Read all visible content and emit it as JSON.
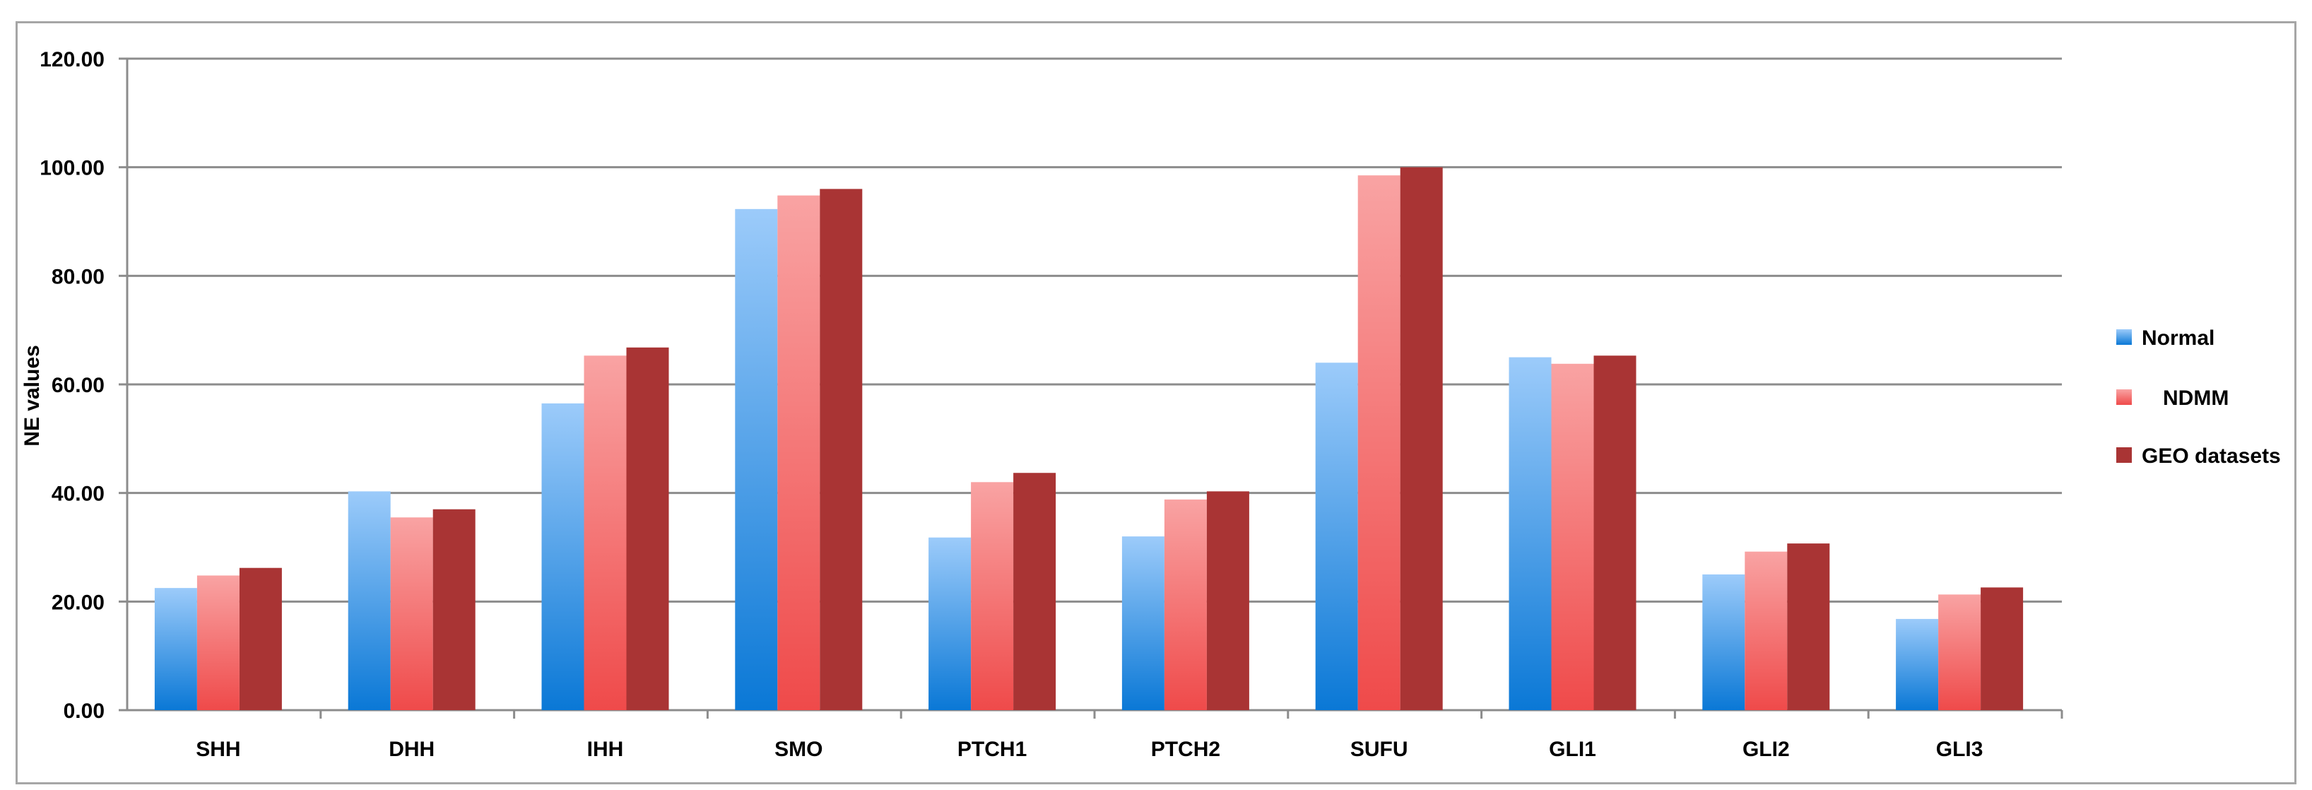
{
  "chart_data": {
    "type": "bar",
    "title": "",
    "xlabel": "",
    "ylabel": "NE values",
    "ylim": [
      0,
      120
    ],
    "yticks": [
      "0.00",
      "20.00",
      "40.00",
      "60.00",
      "80.00",
      "100.00",
      "120.00"
    ],
    "grid": true,
    "legend_position": "right",
    "categories": [
      "SHH",
      "DHH",
      "IHH",
      "SMO",
      "PTCH1",
      "PTCH2",
      "SUFU",
      "GLI1",
      "GLI2",
      "GLI3"
    ],
    "series": [
      {
        "name": "Normal",
        "color": "#4f9fe8",
        "values": [
          22.5,
          40.3,
          56.5,
          92.3,
          31.8,
          32.0,
          64.0,
          65.0,
          25.0,
          16.8
        ]
      },
      {
        "name": "NDMM",
        "color": "#f47c7c",
        "values": [
          24.8,
          35.5,
          65.3,
          94.8,
          42.0,
          38.8,
          98.5,
          63.8,
          29.2,
          21.3
        ]
      },
      {
        "name": "GEO datasets",
        "color": "#a93434",
        "values": [
          26.2,
          37.0,
          66.8,
          96.0,
          43.7,
          40.3,
          100.0,
          65.3,
          30.7,
          22.6
        ]
      }
    ]
  }
}
